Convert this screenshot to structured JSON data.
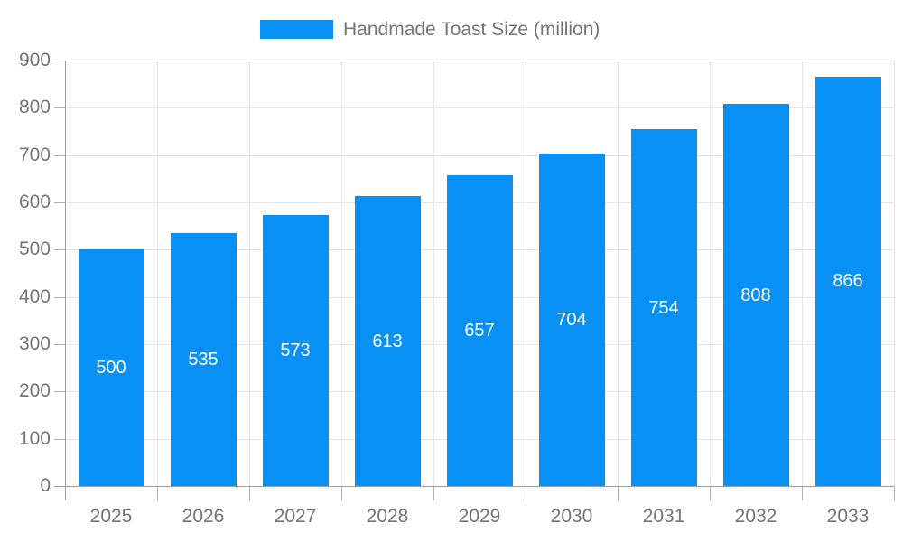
{
  "legend": {
    "label": "Handmade Toast Size (million)"
  },
  "chart_data": {
    "type": "bar",
    "title": "",
    "series_name": "Handmade Toast Size (million)",
    "categories": [
      "2025",
      "2026",
      "2027",
      "2028",
      "2029",
      "2030",
      "2031",
      "2032",
      "2033"
    ],
    "values": [
      500,
      535,
      573,
      613,
      657,
      704,
      754,
      808,
      866
    ],
    "bar_labels": [
      "500",
      "535",
      "573",
      "613",
      "657",
      "704",
      "754",
      "808",
      "866"
    ],
    "xlabel": "",
    "ylabel": "",
    "ylim": [
      0,
      900
    ],
    "y_tick_step": 100,
    "y_tick_labels": [
      "0",
      "100",
      "200",
      "300",
      "400",
      "500",
      "600",
      "700",
      "800",
      "900"
    ],
    "grid": true,
    "legend_position": "top-center",
    "bar_value_labels_position": "inside-middle",
    "colors": {
      "bar": "#0890f5",
      "bar_label": "#ffffff",
      "axis_text": "#757575",
      "legend_text": "#757575",
      "grid_line": "#e5e5e5",
      "axis_line": "#9e9e9e",
      "tick_line": "#b3b3b3",
      "background": "#ffffff"
    }
  }
}
